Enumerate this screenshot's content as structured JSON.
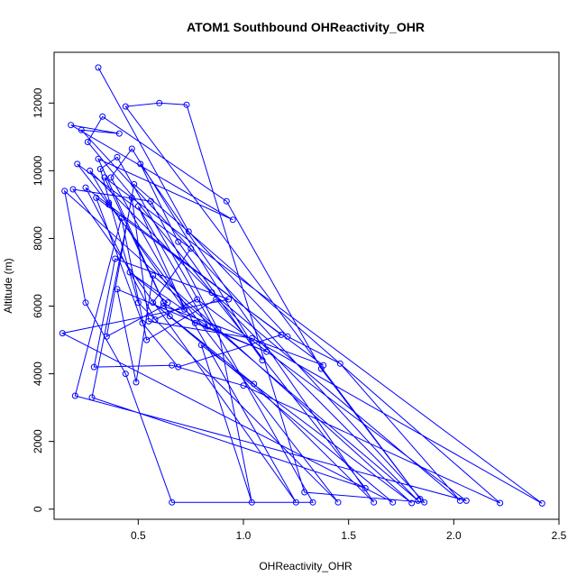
{
  "chart_data": {
    "type": "scatter",
    "title": "ATOM1 Southbound OHReactivity_OHR",
    "xlabel": "OHReactivity_OHR",
    "ylabel": "Altitude (m)",
    "xlim": [
      0.1,
      2.5
    ],
    "ylim": [
      0,
      13000
    ],
    "xticks": [
      0.5,
      1.0,
      1.5,
      2.0,
      2.5
    ],
    "xtick_labels": [
      "0.5",
      "1.0",
      "1.5",
      "2.0",
      "2.5"
    ],
    "yticks": [
      0,
      2000,
      4000,
      6000,
      8000,
      10000,
      12000
    ],
    "ytick_labels": [
      "0",
      "2000",
      "4000",
      "6000",
      "8000",
      "10000",
      "12000"
    ],
    "grid": false,
    "color": "#0000ff",
    "series": [
      {
        "x": [
          0.31,
          0.74,
          1.21,
          1.46,
          2.03,
          0.85,
          0.26,
          0.33,
          0.92,
          1.37,
          1.84,
          0.44,
          0.6,
          0.73,
          1.29,
          1.86,
          0.23,
          0.41,
          0.18,
          0.95,
          0.31,
          0.65,
          1.05,
          1.62,
          0.51,
          0.69,
          1.09,
          0.47,
          0.37,
          1.25,
          0.19,
          0.56,
          0.88,
          1.04,
          0.8,
          1.8,
          0.15,
          0.25,
          0.44,
          0.66,
          1.33,
          0.4,
          0.32,
          0.5,
          1.45,
          0.36,
          0.21,
          0.75,
          0.57,
          1.71,
          0.14,
          0.93,
          0.39,
          0.29,
          0.66,
          1.0,
          2.22,
          0.48,
          0.35,
          0.62,
          1.38,
          0.3,
          0.52,
          0.69,
          1.18,
          0.25,
          0.58,
          0.78,
          2.06,
          0.2,
          0.42,
          0.54,
          0.87,
          1.58,
          0.28,
          0.47,
          0.55,
          1.04,
          2.42,
          0.34,
          0.62,
          0.77,
          1.11,
          0.4,
          0.49,
          0.57,
          1.83,
          0.27,
          0.36,
          0.72,
          0.5,
          0.83,
          0.46,
          0.64
        ],
        "y": [
          13050,
          8200,
          5100,
          4300,
          250,
          6400,
          10850,
          11600,
          9100,
          4150,
          300,
          11900,
          12000,
          11950,
          500,
          200,
          11200,
          11100,
          11350,
          8550,
          10350,
          5700,
          3700,
          200,
          10200,
          7900,
          4400,
          10650,
          9800,
          200,
          9450,
          9100,
          5300,
          200,
          4850,
          180,
          9400,
          6100,
          4000,
          200,
          200,
          10400,
          10050,
          6100,
          200,
          9000,
          10200,
          7700,
          6100,
          200,
          5200,
          6200,
          7400,
          4200,
          4250,
          3650,
          180,
          9600,
          5100,
          6000,
          4250,
          9200,
          5500,
          4200,
          5150,
          9500,
          5600,
          6200,
          250,
          3350,
          8600,
          5000,
          6200,
          620,
          3300,
          9200,
          5550,
          5050,
          170,
          9800,
          6100,
          5500,
          4650,
          6500,
          3750,
          6900,
          250,
          10000,
          9050,
          5900,
          8950,
          5400,
          7000,
          6100
        ]
      }
    ]
  }
}
